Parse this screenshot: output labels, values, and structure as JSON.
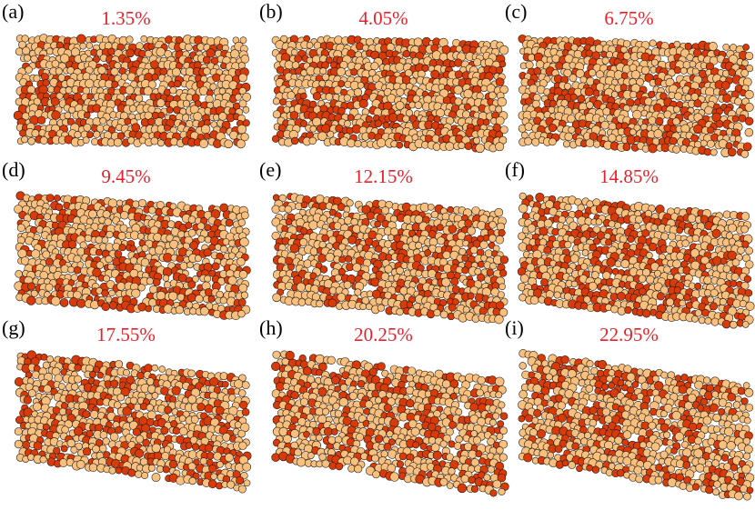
{
  "figure": {
    "panels": [
      {
        "letter": "(a)",
        "strain": "1.35%",
        "strain_value": 1.35
      },
      {
        "letter": "(b)",
        "strain": "4.05%",
        "strain_value": 4.05
      },
      {
        "letter": "(c)",
        "strain": "6.75%",
        "strain_value": 6.75
      },
      {
        "letter": "(d)",
        "strain": "9.45%",
        "strain_value": 9.45
      },
      {
        "letter": "(e)",
        "strain": "12.15%",
        "strain_value": 12.15
      },
      {
        "letter": "(f)",
        "strain": "14.85%",
        "strain_value": 14.85
      },
      {
        "letter": "(g)",
        "strain": "17.55%",
        "strain_value": 17.55
      },
      {
        "letter": "(h)",
        "strain": "20.25%",
        "strain_value": 20.25
      },
      {
        "letter": "(i)",
        "strain": "22.95%",
        "strain_value": 22.95
      }
    ],
    "colors": {
      "strain_label": "#e8202a",
      "particle_light": "#f7c07e",
      "particle_dark": "#d93a0a",
      "particle_outline": "#2a1a10",
      "void": "#ffffff"
    }
  }
}
